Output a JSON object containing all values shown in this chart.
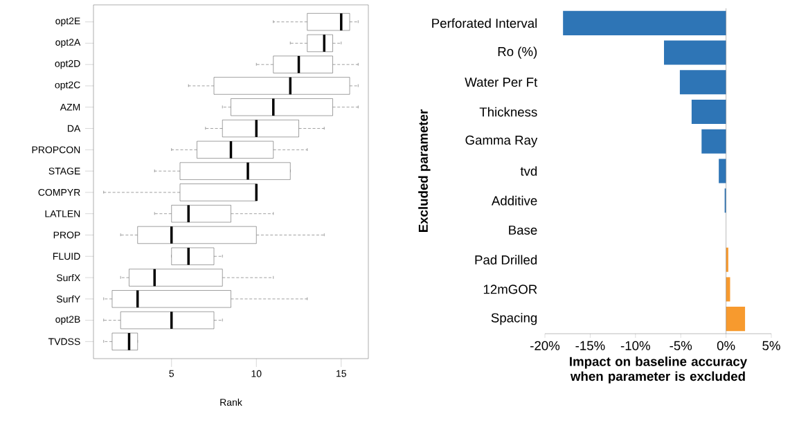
{
  "chart_data": [
    {
      "type": "box",
      "orientation": "horizontal",
      "xlabel": "Rank",
      "xlim": [
        0.4,
        16.6
      ],
      "xticks": [
        5,
        10,
        15
      ],
      "categories": [
        "opt2E",
        "opt2A",
        "opt2D",
        "opt2C",
        "AZM",
        "DA",
        "PROPCON",
        "STAGE",
        "COMPYR",
        "LATLEN",
        "PROP",
        "FLUID",
        "SurfX",
        "SurfY",
        "opt2B",
        "TVDSS"
      ],
      "boxes": [
        {
          "low": 11,
          "q1": 13,
          "median": 15,
          "q3": 15.5,
          "high": 16
        },
        {
          "low": 12,
          "q1": 13,
          "median": 14,
          "q3": 14.5,
          "high": 15
        },
        {
          "low": 10,
          "q1": 11,
          "median": 12.5,
          "q3": 14.5,
          "high": 16
        },
        {
          "low": 6,
          "q1": 7.5,
          "median": 12,
          "q3": 15.5,
          "high": 16
        },
        {
          "low": 8,
          "q1": 8.5,
          "median": 11,
          "q3": 14.5,
          "high": 16
        },
        {
          "low": 7,
          "q1": 8,
          "median": 10,
          "q3": 12.5,
          "high": 14
        },
        {
          "low": 5,
          "q1": 6.5,
          "median": 8.5,
          "q3": 11,
          "high": 13
        },
        {
          "low": 4,
          "q1": 5.5,
          "median": 9.5,
          "q3": 12,
          "high": 12
        },
        {
          "low": 1,
          "q1": 5.5,
          "median": 10,
          "q3": 10,
          "high": 10
        },
        {
          "low": 4,
          "q1": 5,
          "median": 6,
          "q3": 8.5,
          "high": 11
        },
        {
          "low": 2,
          "q1": 3,
          "median": 5,
          "q3": 10,
          "high": 14
        },
        {
          "low": 5,
          "q1": 5,
          "median": 6,
          "q3": 7.5,
          "high": 8
        },
        {
          "low": 2,
          "q1": 2.5,
          "median": 4,
          "q3": 8,
          "high": 11
        },
        {
          "low": 1,
          "q1": 1.5,
          "median": 3,
          "q3": 8.5,
          "high": 13
        },
        {
          "low": 1,
          "q1": 2,
          "median": 5,
          "q3": 7.5,
          "high": 8
        },
        {
          "low": 1,
          "q1": 1.5,
          "median": 2.5,
          "q3": 3,
          "high": 3
        }
      ]
    },
    {
      "type": "bar",
      "orientation": "horizontal",
      "xlabel": "Impact on baseline accuracy when parameter is excluded",
      "ylabel": "Excluded parameter",
      "categories": [
        "Perforated Interval",
        "Ro (%)",
        "Water Per Ft",
        "Thickness",
        "Gamma Ray",
        "tvd",
        "Additive",
        "Base",
        "Pad Drilled",
        "12mGOR",
        "Spacing"
      ],
      "values": [
        -18.0,
        -6.85,
        -5.1,
        -3.8,
        -2.7,
        -0.8,
        -0.15,
        0,
        0.25,
        0.45,
        2.1
      ],
      "colors": [
        "#2e75b6",
        "#2e75b6",
        "#2e75b6",
        "#2e75b6",
        "#2e75b6",
        "#2e75b6",
        "#2e75b6",
        "#2e75b6",
        "#f79a2e",
        "#f79a2e",
        "#f79a2e"
      ],
      "xlim": [
        -20,
        5
      ],
      "xticks": [
        {
          "value": -20,
          "label": "-20%"
        },
        {
          "value": -15,
          "label": "-15%"
        },
        {
          "value": -10,
          "label": "-10%"
        },
        {
          "value": -5,
          "label": "-5%"
        },
        {
          "value": 0,
          "label": "0%"
        },
        {
          "value": 5,
          "label": "5%"
        }
      ]
    }
  ]
}
